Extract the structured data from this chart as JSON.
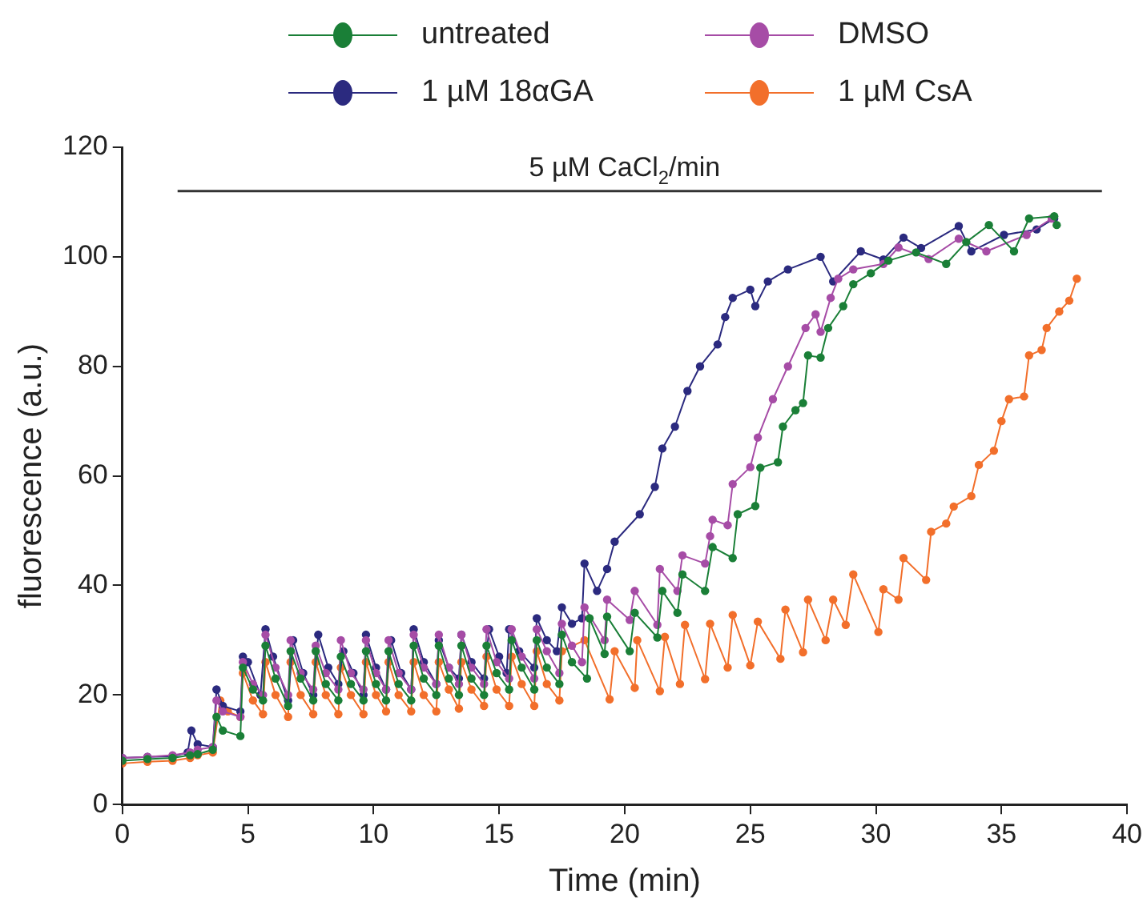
{
  "chart_data": {
    "type": "line",
    "xlabel": "Time (min)",
    "ylabel": "fluorescence (a.u.)",
    "xlim": [
      0,
      40
    ],
    "xticks": [
      0,
      5,
      10,
      15,
      20,
      25,
      30,
      35,
      40
    ],
    "ylim": [
      0,
      120
    ],
    "yticks": [
      0,
      20,
      40,
      60,
      80,
      100,
      120
    ],
    "grid": false,
    "legend": "top",
    "marker": "circle",
    "line_style": "solid",
    "annotations": [
      "5 µM CaCl$_{2}$/min"
    ],
    "series": [
      {
        "type": "line",
        "color": "#333333",
        "marker": "none",
        "x": [
          2.2,
          39
        ],
        "values": [
          112,
          112
        ]
      },
      {
        "name": "untreated",
        "color": "#1a7f37",
        "x": [
          0,
          1,
          2,
          2.7,
          3.0,
          3.6,
          3.75,
          4.0,
          4.7,
          4.8,
          5.2,
          5.6,
          5.7,
          6.1,
          6.6,
          6.7,
          7.1,
          7.6,
          7.7,
          8.1,
          8.6,
          8.7,
          9.1,
          9.6,
          9.7,
          10.1,
          10.5,
          10.6,
          11.0,
          11.5,
          11.6,
          12.0,
          12.5,
          12.6,
          13.0,
          13.4,
          13.5,
          13.9,
          14.4,
          14.5,
          14.9,
          15.4,
          15.5,
          15.9,
          16.4,
          16.5,
          16.9,
          17.4,
          17.5,
          17.9,
          18.5,
          18.6,
          19.2,
          19.3,
          20.2,
          20.4,
          21.3,
          21.5,
          22.1,
          22.3,
          23.2,
          23.5,
          24.3,
          24.5,
          25.2,
          25.4,
          26.1,
          26.3,
          26.8,
          27.1,
          27.3,
          27.8,
          28.1,
          28.7,
          29.1,
          29.8,
          30.5,
          31.6,
          32.8,
          33.6,
          34.5,
          35.5,
          36.1,
          37.1,
          37.2
        ],
        "values": [
          8,
          8.3,
          8.5,
          9,
          9.2,
          10,
          16,
          13.5,
          12.5,
          25,
          21,
          19,
          29,
          23,
          18,
          28,
          23,
          19,
          28,
          22,
          19,
          27,
          22,
          19,
          28,
          22,
          19,
          28,
          22,
          19,
          29,
          23,
          20,
          29,
          23,
          20,
          29,
          23,
          20,
          29,
          24,
          21,
          30,
          25,
          21,
          30,
          25,
          22,
          31,
          26,
          23,
          34,
          27.5,
          34.3,
          28,
          35,
          30.5,
          39,
          35,
          42,
          39,
          47,
          45,
          53,
          54.5,
          61.5,
          62.5,
          69,
          72,
          73.3,
          82,
          81.6,
          87,
          91,
          95,
          97,
          99.3,
          100.8,
          98.7,
          102.7,
          105.8,
          101,
          107,
          107.4,
          105.8
        ]
      },
      {
        "name": "DMSO",
        "color": "#a64ca6",
        "x": [
          0,
          1,
          2,
          2.7,
          3.0,
          3.6,
          3.75,
          4.0,
          4.7,
          4.8,
          5.2,
          5.6,
          5.7,
          6.1,
          6.6,
          6.7,
          7.1,
          7.6,
          7.7,
          8.1,
          8.6,
          8.7,
          9.1,
          9.6,
          9.7,
          10.1,
          10.5,
          10.6,
          11.0,
          11.5,
          11.6,
          12.0,
          12.5,
          12.6,
          13.0,
          13.4,
          13.5,
          13.9,
          14.4,
          14.5,
          14.9,
          15.4,
          15.5,
          15.9,
          16.4,
          16.5,
          16.9,
          17.4,
          17.5,
          17.9,
          18.3,
          18.4,
          19.2,
          19.3,
          20.2,
          20.4,
          21.3,
          21.4,
          22.1,
          22.3,
          23.2,
          23.4,
          23.5,
          24.1,
          24.3,
          25.0,
          25.3,
          25.9,
          26.5,
          27.2,
          27.6,
          27.8,
          28.2,
          28.5,
          29.1,
          30.3,
          30.9,
          32.1,
          33.3,
          34.4,
          36.0,
          37.0
        ],
        "values": [
          8.5,
          8.7,
          9,
          9.5,
          10,
          10.5,
          19,
          17,
          16,
          26,
          22,
          20,
          31,
          25,
          20,
          30,
          24,
          21,
          29,
          24,
          21,
          30,
          24,
          21,
          30,
          24,
          21,
          30,
          24,
          21,
          31,
          25,
          22,
          31,
          25,
          22,
          31,
          25,
          22,
          32,
          26,
          23,
          32,
          27,
          23,
          32,
          28,
          24,
          33,
          29,
          26,
          36,
          30,
          37.4,
          33.7,
          39,
          32.8,
          43,
          39,
          45.5,
          44,
          49,
          52,
          51,
          58.5,
          61.6,
          67,
          74,
          80,
          87,
          89.5,
          86.3,
          92.5,
          96,
          97.7,
          98.7,
          101.7,
          99.6,
          103.3,
          101,
          104,
          107
        ]
      },
      {
        "name": "1 µM 18αGA",
        "color": "#2b2a7f",
        "x": [
          0,
          1,
          2,
          2.6,
          2.75,
          3.0,
          3.6,
          3.75,
          4.0,
          4.7,
          4.8,
          5.0,
          5.5,
          5.7,
          6.0,
          6.6,
          6.8,
          7.2,
          7.6,
          7.8,
          8.2,
          8.6,
          8.8,
          9.2,
          9.6,
          9.7,
          10.1,
          10.5,
          10.7,
          11.1,
          11.5,
          11.6,
          12.0,
          12.5,
          12.6,
          13.0,
          13.4,
          13.5,
          13.9,
          14.4,
          14.6,
          15.0,
          15.3,
          15.4,
          15.8,
          16.4,
          16.5,
          16.9,
          17.3,
          17.5,
          17.9,
          18.3,
          18.4,
          18.9,
          19.3,
          19.6,
          20.6,
          21.2,
          21.5,
          22.0,
          22.5,
          23.0,
          23.7,
          24.0,
          24.3,
          25.0,
          25.2,
          25.7,
          26.5,
          27.8,
          28.3,
          29.4,
          30.3,
          31.1,
          31.8,
          33.3,
          33.8,
          35.1,
          36.4,
          37.1
        ],
        "values": [
          8.5,
          8.7,
          8.8,
          9.5,
          13.5,
          11,
          10.5,
          21,
          18,
          17,
          27,
          26,
          20,
          32,
          27,
          19,
          30,
          24,
          20,
          31,
          25,
          22,
          28,
          24,
          20,
          31,
          25,
          21,
          30,
          24,
          21,
          32,
          26,
          22,
          30,
          25,
          23,
          31,
          26,
          23,
          32,
          27,
          24,
          32,
          28,
          25,
          34,
          30,
          28,
          36,
          33,
          34,
          44,
          39,
          43,
          48,
          53,
          58,
          65,
          69,
          75.5,
          80,
          84,
          89,
          92.5,
          94,
          91,
          95.5,
          97.7,
          100,
          95.5,
          101,
          99.5,
          103.5,
          101.6,
          105.6,
          101,
          104,
          105,
          107
        ]
      },
      {
        "name": "1 µM CsA",
        "color": "#f26f2b",
        "x": [
          0,
          1,
          2,
          2.7,
          3.0,
          3.6,
          3.9,
          4.2,
          4.7,
          4.8,
          5.2,
          5.6,
          5.7,
          6.1,
          6.6,
          6.7,
          7.1,
          7.6,
          7.7,
          8.1,
          8.6,
          8.7,
          9.1,
          9.6,
          9.7,
          10.1,
          10.5,
          10.6,
          11.0,
          11.5,
          11.6,
          12.0,
          12.5,
          12.6,
          13.0,
          13.4,
          13.5,
          13.9,
          14.4,
          14.5,
          14.9,
          15.4,
          15.5,
          15.9,
          16.4,
          16.5,
          16.9,
          17.4,
          17.5,
          18.4,
          19.4,
          19.6,
          20.4,
          20.5,
          21.4,
          21.6,
          22.2,
          22.4,
          23.2,
          23.4,
          24.1,
          24.3,
          25.0,
          25.3,
          26.2,
          26.4,
          27.1,
          27.3,
          28.0,
          28.3,
          28.8,
          29.1,
          30.1,
          30.3,
          30.9,
          31.1,
          32.0,
          32.2,
          32.8,
          33.1,
          33.8,
          34.1,
          34.7,
          35.0,
          35.3,
          35.9,
          36.1,
          36.6,
          36.8,
          37.3,
          37.7,
          38.0
        ],
        "values": [
          7.5,
          7.8,
          8,
          8.5,
          9,
          9.5,
          19,
          17,
          16,
          24,
          19,
          16.5,
          26,
          20,
          16,
          26,
          20,
          16.5,
          26,
          20,
          16.5,
          25,
          20,
          16.5,
          26,
          20,
          17,
          26,
          20,
          17,
          26,
          20,
          17,
          26,
          21,
          17.5,
          26,
          21,
          18,
          27,
          21,
          18,
          27,
          22,
          18,
          28,
          22,
          19,
          28,
          30,
          19.2,
          28,
          21.3,
          30,
          20.7,
          30.6,
          22,
          32.8,
          22.9,
          33,
          25,
          34.6,
          25.4,
          33.4,
          26.6,
          35.6,
          27.8,
          37.4,
          30,
          37.4,
          32.8,
          42,
          31.5,
          39.3,
          37.4,
          45,
          41,
          49.8,
          51.3,
          54.4,
          56.3,
          62,
          64.6,
          70,
          74,
          74.5,
          82,
          83,
          87,
          90,
          92,
          96
        ]
      }
    ]
  }
}
